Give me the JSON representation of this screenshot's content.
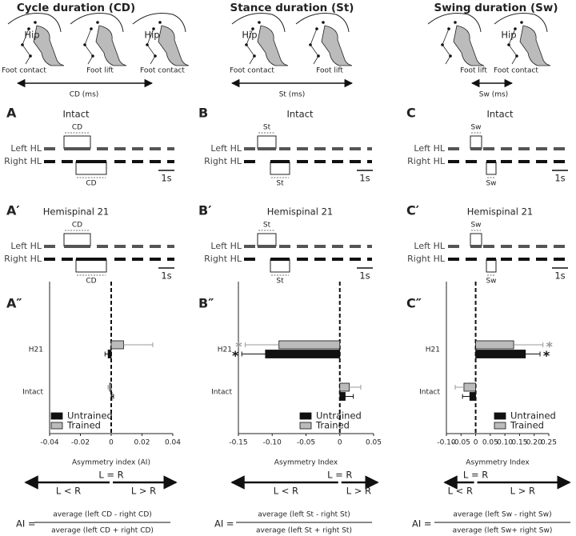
{
  "columns": [
    {
      "title": "Cycle duration (CD)",
      "schematic": {
        "hip_labels": [
          "Hip",
          "Hip"
        ],
        "foot_labels": [
          "Foot contact",
          "Foot lift",
          "Foot contact"
        ],
        "interval": "CD (ms)"
      },
      "panels": [
        {
          "letter": "A",
          "title": "Intact",
          "left": "Left HL",
          "right": "Right HL",
          "interval_labels": [
            "CD",
            "CD"
          ],
          "scale": "1s"
        },
        {
          "letter": "A′",
          "title": "Hemispinal 21",
          "left": "Left HL",
          "right": "Right HL",
          "interval_labels": [
            "CD",
            "CD"
          ],
          "scale": "1s"
        }
      ]
    },
    {
      "title": "Stance duration (St)",
      "schematic": {
        "hip_labels": [
          "Hip"
        ],
        "foot_labels": [
          "Foot contact",
          "Foot lift"
        ],
        "interval": "St (ms)"
      },
      "panels": [
        {
          "letter": "B",
          "title": "Intact",
          "left": "Left HL",
          "right": "Right HL",
          "interval_labels": [
            "St",
            "St"
          ],
          "scale": "1s"
        },
        {
          "letter": "B′",
          "title": "Hemispinal 21",
          "left": "Left HL",
          "right": "Right HL",
          "interval_labels": [
            "St",
            "St"
          ],
          "scale": "1s"
        }
      ]
    },
    {
      "title": "Swing duration (Sw)",
      "schematic": {
        "hip_labels": [
          "Hip"
        ],
        "foot_labels": [
          "Foot lift",
          "Foot contact"
        ],
        "interval": "Sw (ms)"
      },
      "panels": [
        {
          "letter": "C",
          "title": "Intact",
          "left": "Left HL",
          "right": "Right HL",
          "interval_labels": [
            "Sw",
            "Sw"
          ],
          "scale": "1s"
        },
        {
          "letter": "C′",
          "title": "Hemispinal 21",
          "left": "Left HL",
          "right": "Right HL",
          "interval_labels": [
            "Sw",
            "Sw"
          ],
          "scale": "1s"
        }
      ]
    }
  ],
  "chart_data": [
    {
      "type": "bar",
      "orientation": "horizontal",
      "letter": "A″",
      "categories": [
        "H21",
        "Intact"
      ],
      "series": [
        {
          "name": "Untrained",
          "color": "#111111",
          "values": [
            -0.002,
            0.0005
          ],
          "errors": [
            0.002,
            0.001
          ],
          "significance": [
            null,
            null
          ]
        },
        {
          "name": "Trained",
          "color": "#bbbbbb",
          "values": [
            0.008,
            -0.001
          ],
          "errors": [
            0.019,
            0.001
          ],
          "significance": [
            null,
            null
          ]
        }
      ],
      "xlim": [
        -0.04,
        0.04
      ],
      "xticks": [
        -0.04,
        -0.02,
        0,
        0.02,
        0.04
      ],
      "xlabel": "Asymmetry index (AI)",
      "legend": "lower left",
      "arrows": {
        "center": "L = R",
        "left": "L < R",
        "right": "L > R"
      },
      "formula": {
        "lhs": "AI =",
        "numerator": "average (left CD - right CD)",
        "denominator": "average (left CD + right CD)"
      }
    },
    {
      "type": "bar",
      "orientation": "horizontal",
      "letter": "B″",
      "categories": [
        "H21",
        "Intact"
      ],
      "series": [
        {
          "name": "Untrained",
          "color": "#111111",
          "values": [
            -0.11,
            0.008
          ],
          "errors": [
            0.035,
            0.012
          ],
          "significance": [
            "*",
            null
          ]
        },
        {
          "name": "Trained",
          "color": "#bbbbbb",
          "values": [
            -0.09,
            0.014
          ],
          "errors": [
            0.05,
            0.017
          ],
          "significance": [
            "*",
            null
          ]
        }
      ],
      "xlim": [
        -0.15,
        0.05
      ],
      "xticks": [
        -0.15,
        {
          "value": -0.1,
          "label": "-0.10"
        },
        -0.05,
        0,
        0.05
      ],
      "xlabel": "Asymmetry Index",
      "legend": "lower right",
      "arrows": {
        "center": "L = R",
        "left": "L < R",
        "right": "L > R"
      },
      "formula": {
        "lhs": "AI =",
        "numerator": "average (left St - right St)",
        "denominator": "average (left St + right St)"
      }
    },
    {
      "type": "bar",
      "orientation": "horizontal",
      "letter": "C″",
      "categories": [
        "H21",
        "Intact"
      ],
      "series": [
        {
          "name": "Untrained",
          "color": "#111111",
          "values": [
            0.17,
            -0.02
          ],
          "errors": [
            0.05,
            0.025
          ],
          "significance": [
            "*",
            null
          ]
        },
        {
          "name": "Trained",
          "color": "#bbbbbb",
          "values": [
            0.13,
            -0.04
          ],
          "errors": [
            0.1,
            0.03
          ],
          "significance": [
            "*",
            null
          ]
        }
      ],
      "xlim": [
        -0.1,
        0.25
      ],
      "xticks": [
        {
          "value": -0.1,
          "label": "-0.10"
        },
        -0.05,
        0,
        0.05,
        {
          "value": 0.1,
          "label": "0.10"
        },
        0.15,
        {
          "value": 0.2,
          "label": "0.20"
        },
        0.25
      ],
      "xlabel": "Asymmetry Index",
      "legend": "lower right",
      "arrows": {
        "center": "L = R",
        "left": "L < R",
        "right": "L > R"
      },
      "formula": {
        "lhs": "AI =",
        "numerator": "average (left Sw - right Sw)",
        "denominator": "average (left Sw+ right Sw)"
      }
    }
  ]
}
